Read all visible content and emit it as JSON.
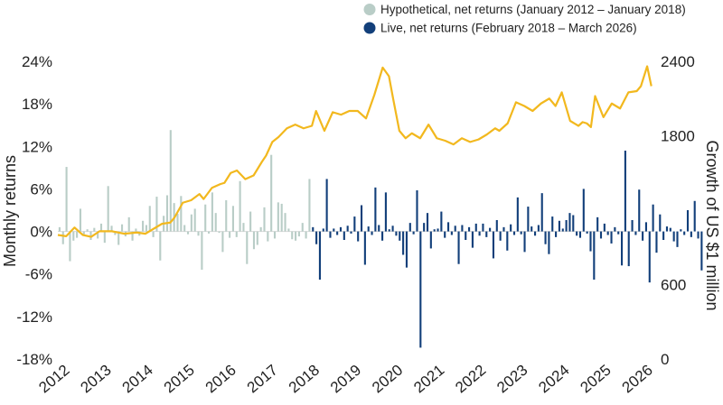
{
  "chart_data": {
    "type": "bar+line",
    "title": "",
    "legend": {
      "placement": "top-right",
      "items": [
        {
          "label": "Hypothetical, net returns (January 2012 – January 2018)",
          "color": "#b9cdc7"
        },
        {
          "label": "Live, net returns (February 2018 – March 2026)",
          "color": "#123f7a"
        }
      ]
    },
    "colors": {
      "hypothetical": "#b9cdc7",
      "live": "#123f7a",
      "growth_line": "#f2b81e",
      "zero_line": "#d9d9d9"
    },
    "left_axis": {
      "label": "Monthly returns",
      "ylim": [
        -18,
        24
      ],
      "ticks": [
        24,
        18,
        12,
        6,
        0,
        -6,
        -12,
        -18
      ],
      "tick_labels": [
        "24%",
        "18%",
        "12%",
        "6%",
        "0%",
        "-6%",
        "-12%",
        "-18%"
      ]
    },
    "right_axis": {
      "label": "Growth of US $1 million",
      "ylim": [
        0,
        2400
      ],
      "ticks": [
        2400,
        1800,
        600,
        0
      ],
      "tick_labels": [
        "2400",
        "1800",
        "600",
        "0"
      ]
    },
    "x_axis": {
      "range": [
        2012.0,
        2026.3
      ],
      "ticks": [
        2012,
        2013,
        2014,
        2015,
        2016,
        2017,
        2018,
        2019,
        2020,
        2021,
        2022,
        2023,
        2024,
        2025,
        2026
      ],
      "tick_labels": [
        "2012",
        "2013",
        "2014",
        "2015",
        "2016",
        "2017",
        "2018",
        "2019",
        "2020",
        "2021",
        "2022",
        "2023",
        "2024",
        "2025",
        "2026"
      ]
    },
    "hypothetical_monthly_returns": [
      0.6,
      -1.8,
      9.1,
      -4.2,
      -1.3,
      -0.9,
      3.2,
      -0.4,
      0.3,
      -1.2,
      0.5,
      -1.0,
      1.1,
      -1.6,
      6.4,
      0.8,
      -0.5,
      -1.9,
      1.0,
      -0.7,
      2.0,
      -1.3,
      0.4,
      -0.6,
      1.5,
      0.9,
      3.6,
      -0.8,
      4.9,
      -4.1,
      2.2,
      5.1,
      14.3,
      4.0,
      2.5,
      5.0,
      0.9,
      -0.4,
      2.4,
      3.2,
      -0.6,
      -5.4,
      3.8,
      -0.3,
      5.5,
      2.6,
      -0.2,
      -2.9,
      4.4,
      -0.9,
      3.6,
      -0.8,
      7.1,
      1.2,
      -4.6,
      2.8,
      -2.5,
      -1.9,
      0.6,
      3.4,
      -1.4,
      10.8,
      -1.0,
      4.1,
      3.9,
      2.6,
      0.4,
      -1.1,
      -1.3,
      -0.7,
      1.2,
      -1.0,
      7.4
    ],
    "live_monthly_returns": [
      0.6,
      -1.8,
      -6.8,
      0.4,
      7.4,
      -0.9,
      0.4,
      -0.5,
      0.6,
      -1.2,
      0.8,
      -0.3,
      2.1,
      -1.4,
      3.7,
      -4.7,
      0.7,
      -0.5,
      6.2,
      0.9,
      -1.3,
      5.5,
      0.3,
      0.8,
      -0.6,
      -1.3,
      -3.3,
      -5.1,
      1.2,
      -0.4,
      5.8,
      -16.4,
      1.2,
      2.6,
      -2.4,
      0.3,
      0.4,
      2.8,
      -0.9,
      1.3,
      -0.5,
      0.8,
      -4.6,
      0.9,
      -1.2,
      0.6,
      -2.3,
      1.1,
      -0.6,
      1.1,
      -0.8,
      0.5,
      -3.8,
      1.6,
      -1.3,
      0.6,
      -2.7,
      1.0,
      -0.5,
      4.8,
      -0.4,
      -2.9,
      3.5,
      0.7,
      -0.6,
      0.9,
      5.4,
      -1.8,
      -3.2,
      2.1,
      -0.8,
      1.5,
      0.4,
      1.6,
      2.6,
      2.3,
      -0.6,
      -0.9,
      6.0,
      -0.3,
      -2.8,
      -6.8,
      2.0,
      -1.0,
      1.1,
      -0.5,
      -1.7,
      0.6,
      -0.4,
      -4.8,
      11.4,
      -4.9,
      1.6,
      -0.5,
      5.9,
      -1.3,
      1.3,
      -7.2,
      3.8,
      -3.0,
      2.4,
      -1.2,
      0.7,
      0.5,
      -1.4,
      -2.2,
      0.3,
      -0.5,
      3.0,
      -0.8,
      4.3,
      -1.0,
      -5.5
    ],
    "growth_of_1m": {
      "x": [
        2012.0,
        2012.2,
        2012.4,
        2012.6,
        2012.8,
        2013.0,
        2013.3,
        2013.6,
        2013.9,
        2014.1,
        2014.3,
        2014.5,
        2014.7,
        2014.8,
        2014.9,
        2015.0,
        2015.2,
        2015.4,
        2015.5,
        2015.7,
        2015.9,
        2016.0,
        2016.15,
        2016.3,
        2016.5,
        2016.7,
        2016.9,
        2017.0,
        2017.15,
        2017.3,
        2017.5,
        2017.7,
        2017.9,
        2018.0,
        2018.1,
        2018.2,
        2018.4,
        2018.6,
        2018.8,
        2019.0,
        2019.2,
        2019.4,
        2019.6,
        2019.8,
        2019.95,
        2020.05,
        2020.2,
        2020.35,
        2020.5,
        2020.7,
        2020.9,
        2021.1,
        2021.3,
        2021.5,
        2021.7,
        2021.9,
        2022.1,
        2022.3,
        2022.5,
        2022.6,
        2022.8,
        2023.0,
        2023.2,
        2023.4,
        2023.6,
        2023.8,
        2023.95,
        2024.1,
        2024.3,
        2024.5,
        2024.6,
        2024.7,
        2024.8,
        2024.9,
        2025.1,
        2025.3,
        2025.5,
        2025.7,
        2025.9,
        2026.0,
        2026.15,
        2026.25
      ],
      "y": [
        1000,
        990,
        1060,
        1000,
        985,
        1030,
        1030,
        1010,
        1020,
        1010,
        1050,
        1090,
        1100,
        1140,
        1200,
        1260,
        1280,
        1330,
        1290,
        1380,
        1410,
        1420,
        1500,
        1520,
        1450,
        1480,
        1590,
        1640,
        1750,
        1790,
        1860,
        1890,
        1860,
        1870,
        1880,
        2000,
        1840,
        1990,
        1970,
        2000,
        2000,
        1940,
        2130,
        2350,
        2280,
        2100,
        1840,
        1780,
        1820,
        1780,
        1890,
        1780,
        1760,
        1730,
        1780,
        1750,
        1770,
        1810,
        1860,
        1840,
        1900,
        2070,
        2040,
        2000,
        2060,
        2100,
        2040,
        2150,
        1920,
        1880,
        1910,
        1900,
        1870,
        2120,
        1950,
        2060,
        2020,
        2150,
        2160,
        2200,
        2360,
        2200
      ]
    }
  }
}
